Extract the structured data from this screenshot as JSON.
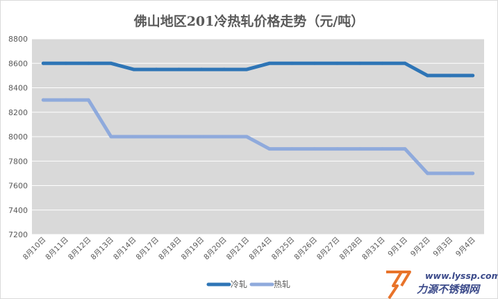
{
  "chart_data": {
    "type": "line",
    "title": "佛山地区201冷热轧价格走势（元/吨）",
    "xlabel": "",
    "ylabel": "",
    "categories": [
      "8月10日",
      "8月11日",
      "8月12日",
      "8月13日",
      "8月14日",
      "8月17日",
      "8月18日",
      "8月19日",
      "8月20日",
      "8月21日",
      "8月24日",
      "8月25日",
      "8月26日",
      "8月27日",
      "8月28日",
      "8月31日",
      "9月1日",
      "9月2日",
      "9月3日",
      "9月4日"
    ],
    "ylim": [
      7200,
      8800
    ],
    "yticks": [
      7200,
      7400,
      7600,
      7800,
      8000,
      8200,
      8400,
      8600,
      8800
    ],
    "grid": true,
    "legend_position": "bottom",
    "series": [
      {
        "name": "冷轧",
        "color": "#2e75b6",
        "values": [
          8600,
          8600,
          8600,
          8600,
          8550,
          8550,
          8550,
          8550,
          8550,
          8550,
          8600,
          8600,
          8600,
          8600,
          8600,
          8600,
          8600,
          8500,
          8500,
          8500
        ]
      },
      {
        "name": "热轧",
        "color": "#8faadc",
        "values": [
          8300,
          8300,
          8300,
          8000,
          8000,
          8000,
          8000,
          8000,
          8000,
          8000,
          7900,
          7900,
          7900,
          7900,
          7900,
          7900,
          7900,
          7700,
          7700,
          7700
        ]
      }
    ],
    "plot_background": "#d9d9d9"
  },
  "watermark": {
    "url": "www.lyssp.com",
    "name": "力源不锈钢网",
    "mark_color": "#e8732a",
    "text_color": "#3b4a8a"
  }
}
